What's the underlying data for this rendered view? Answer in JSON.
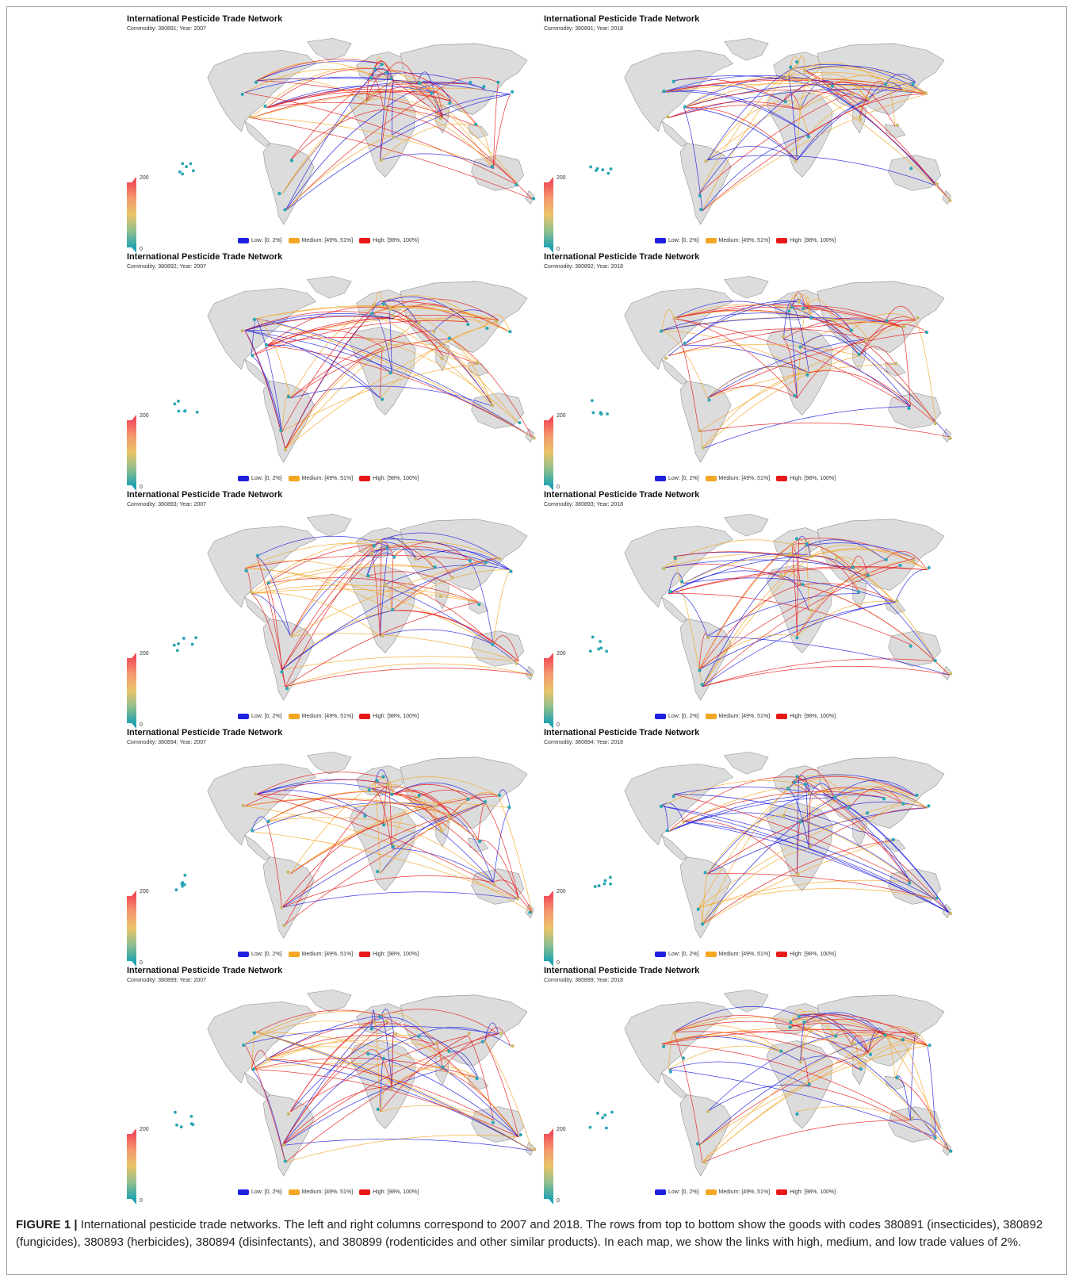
{
  "panel_title": "International Pesticide Trade Network",
  "scale": {
    "max": "200",
    "min": "0"
  },
  "legend": {
    "low": {
      "label": "Low: [0, 2%]",
      "color": "#1f1fe0"
    },
    "medium": {
      "label": "Medium: [49%, 51%]",
      "color": "#f5a623"
    },
    "high": {
      "label": "High: [98%, 100%]",
      "color": "#e81818"
    }
  },
  "panels": [
    {
      "subtitle": "Commodity: 380891; Year: 2007"
    },
    {
      "subtitle": "Commodity: 380891; Year: 2018"
    },
    {
      "subtitle": "Commodity: 380892; Year: 2007"
    },
    {
      "subtitle": "Commodity: 380892; Year: 2018"
    },
    {
      "subtitle": "Commodity: 380893; Year: 2007"
    },
    {
      "subtitle": "Commodity: 380893; Year: 2018"
    },
    {
      "subtitle": "Commodity: 380894; Year: 2007"
    },
    {
      "subtitle": "Commodity: 380894; Year: 2018"
    },
    {
      "subtitle": "Commodity: 380899; Year: 2007"
    },
    {
      "subtitle": "Commodity: 380899; Year: 2018"
    }
  ],
  "caption": {
    "label": "FIGURE 1 |",
    "text": " International pesticide trade networks. The left and right columns correspond to 2007 and 2018. The rows from top to bottom show the goods with codes 380891 (insecticides), 380892 (fungicides), 380893 (herbicides), 380894 (disinfectants), and 380899 (rodenticides and other similar products). In each map, we show the links with high, medium, and low trade values of 2%."
  },
  "colors": {
    "land": "#dcdcdc",
    "coast": "#8a8a8a",
    "node_a": "#2aa6b4",
    "node_b": "#c9b86a"
  }
}
